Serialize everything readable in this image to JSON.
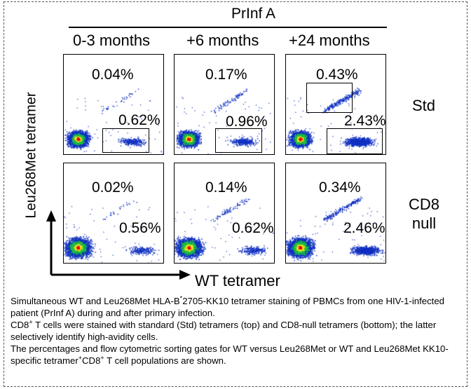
{
  "figure": {
    "patient_header": "PrInf A",
    "timepoints": [
      "0-3 months",
      "+6 months",
      "+24 months"
    ],
    "y_axis_label": "Leu268Met tetramer",
    "x_axis_label": "WT tetramer",
    "row_labels": [
      "Std",
      "CD8\nnull"
    ],
    "rows": [
      {
        "label": "Std",
        "panels": [
          {
            "upper_pct": "0.04%",
            "lower_pct": "0.62%"
          },
          {
            "upper_pct": "0.17%",
            "lower_pct": "0.96%"
          },
          {
            "upper_pct": "0.43%",
            "lower_pct": "2.43%"
          }
        ]
      },
      {
        "label": "CD8 null",
        "panels": [
          {
            "upper_pct": "0.02%",
            "lower_pct": "0.56%"
          },
          {
            "upper_pct": "0.14%",
            "lower_pct": "0.62%"
          },
          {
            "upper_pct": "0.34%",
            "lower_pct": "2.46%"
          }
        ]
      }
    ]
  },
  "caption": {
    "line1_pre": "Simultaneous WT and Leu268Met HLA-B",
    "line1_sup": "*",
    "line1_post": "2705-KK10 tetramer staining of PBMCs from one HIV-1-infected patient (PrInf A) during and after primary infection.",
    "line2_pre": "CD8",
    "line2_sup": "+",
    "line2_post": " T cells were stained with standard (Std) tetramers (top) and CD8-null tetramers (bottom); the latter selectively identify high-avidity cells.",
    "line3_pre": "The percentages and flow cytometric sorting gates for WT versus Leu268Met or WT and Leu268Met KK10-specific tetramer",
    "line3_sup1": "+",
    "line3_mid": "CD8",
    "line3_sup2": "+",
    "line3_post": " T cell populations are shown."
  },
  "colors": {
    "density_high": "#e01010",
    "density_mid": "#f0e020",
    "density_low": "#20c040",
    "density_sparse": "#1030c0"
  }
}
